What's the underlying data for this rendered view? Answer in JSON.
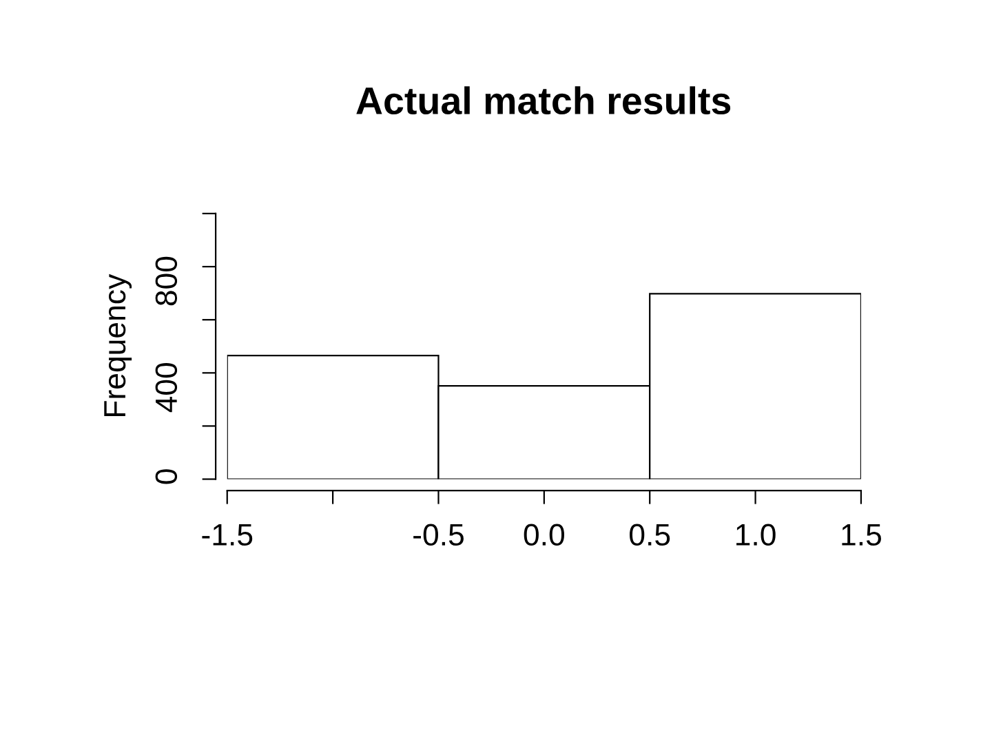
{
  "chart_data": {
    "type": "histogram",
    "title": "Actual match results",
    "ylabel": "Frequency",
    "bins": [
      -1.5,
      -0.5,
      0.5,
      1.5
    ],
    "values": [
      465,
      351,
      698
    ],
    "color": "#ffffff",
    "xlim": [
      -1.5,
      1.5
    ],
    "xticks": [
      -1.5,
      {
        "value": -1,
        "label": null
      },
      -0.5,
      {
        "value": 0,
        "label": "0.0"
      },
      0.5,
      {
        "value": 1,
        "label": "1.0"
      },
      1.5
    ],
    "ylim": [
      0,
      1000
    ],
    "yticks": [
      0,
      {
        "value": 200,
        "label": null
      },
      400,
      {
        "value": 600,
        "label": null
      },
      800,
      {
        "value": 1000,
        "label": null
      }
    ],
    "grid": false,
    "legend": false
  }
}
